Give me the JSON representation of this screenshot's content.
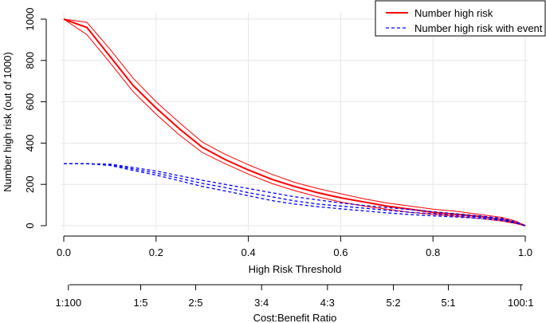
{
  "chart_data": {
    "type": "line",
    "title": "",
    "xlabel": "High Risk Threshold",
    "ylabel": "Number high risk (out of 1000)",
    "xlim": [
      0,
      1
    ],
    "ylim": [
      0,
      1000
    ],
    "x_ticks": [
      "0.0",
      "0.2",
      "0.4",
      "0.6",
      "0.8",
      "1.0"
    ],
    "x_tick_values": [
      0,
      0.2,
      0.4,
      0.6,
      0.8,
      1.0
    ],
    "y_ticks": [
      "0",
      "200",
      "400",
      "600",
      "800",
      "1000"
    ],
    "y_tick_values": [
      0,
      200,
      400,
      600,
      800,
      1000
    ],
    "grid": true,
    "legend_position": "top-right",
    "secondary_axis": {
      "label": "Cost:Benefit Ratio",
      "ticks": [
        "1:100",
        "1:5",
        "2:5",
        "3:4",
        "4:3",
        "5:2",
        "5:1",
        "100:1"
      ],
      "tick_positions": [
        0.01,
        0.1667,
        0.2857,
        0.4286,
        0.5714,
        0.7143,
        0.8333,
        0.9901
      ]
    },
    "x": [
      0.0,
      0.05,
      0.1,
      0.15,
      0.2,
      0.25,
      0.3,
      0.35,
      0.4,
      0.45,
      0.5,
      0.55,
      0.6,
      0.65,
      0.7,
      0.75,
      0.8,
      0.85,
      0.9,
      0.95,
      0.98,
      1.0
    ],
    "series": [
      {
        "name": "Number high risk",
        "legend": true,
        "color": "#ff0000",
        "style": "solid",
        "values": [
          1000,
          960,
          820,
          680,
          570,
          470,
          380,
          320,
          270,
          225,
          190,
          160,
          135,
          115,
          95,
          80,
          65,
          55,
          45,
          30,
          15,
          0
        ]
      },
      {
        "name": "Number high risk upper CI",
        "legend": false,
        "color": "#ff0000",
        "style": "solid",
        "values": [
          1000,
          985,
          855,
          715,
          600,
          500,
          405,
          345,
          295,
          250,
          210,
          180,
          155,
          130,
          110,
          95,
          80,
          70,
          55,
          40,
          22,
          0
        ]
      },
      {
        "name": "Number high risk lower CI",
        "legend": false,
        "color": "#ff0000",
        "style": "solid",
        "values": [
          1000,
          925,
          790,
          650,
          540,
          440,
          355,
          300,
          250,
          205,
          170,
          140,
          115,
          95,
          80,
          65,
          55,
          45,
          35,
          22,
          10,
          0
        ]
      },
      {
        "name": "Number high risk with event",
        "legend": true,
        "color": "#0000ff",
        "style": "dashed",
        "values": [
          300,
          300,
          295,
          275,
          255,
          230,
          205,
          185,
          160,
          140,
          120,
          105,
          95,
          85,
          75,
          65,
          58,
          50,
          42,
          30,
          15,
          0
        ]
      },
      {
        "name": "Number high risk with event upper CI",
        "legend": false,
        "color": "#0000ff",
        "style": "dashed",
        "values": [
          300,
          300,
          298,
          282,
          265,
          242,
          220,
          200,
          180,
          160,
          140,
          125,
          110,
          98,
          88,
          78,
          68,
          58,
          48,
          35,
          18,
          0
        ]
      },
      {
        "name": "Number high risk with event lower CI",
        "legend": false,
        "color": "#0000ff",
        "style": "dashed",
        "values": [
          300,
          300,
          292,
          268,
          245,
          218,
          190,
          168,
          145,
          122,
          105,
          92,
          82,
          72,
          62,
          54,
          48,
          42,
          36,
          25,
          12,
          0
        ]
      }
    ]
  }
}
